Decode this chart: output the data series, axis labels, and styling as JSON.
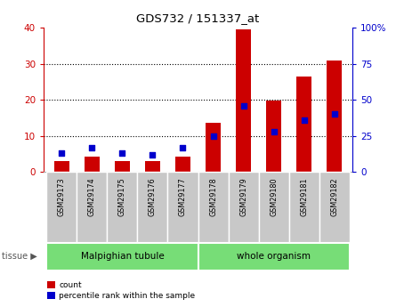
{
  "title": "GDS732 / 151337_at",
  "samples": [
    "GSM29173",
    "GSM29174",
    "GSM29175",
    "GSM29176",
    "GSM29177",
    "GSM29178",
    "GSM29179",
    "GSM29180",
    "GSM29181",
    "GSM29182"
  ],
  "counts": [
    3.0,
    4.2,
    3.0,
    3.0,
    4.2,
    13.5,
    39.5,
    19.8,
    26.5,
    31.0
  ],
  "percentiles": [
    13,
    17,
    13,
    12,
    17,
    25,
    46,
    28,
    36,
    40
  ],
  "groups": [
    {
      "label": "Malpighian tubule",
      "start": 0,
      "end": 5
    },
    {
      "label": "whole organism",
      "start": 5,
      "end": 10
    }
  ],
  "left_ylim": [
    0,
    40
  ],
  "right_ylim": [
    0,
    100
  ],
  "left_yticks": [
    0,
    10,
    20,
    30,
    40
  ],
  "right_yticks": [
    0,
    25,
    50,
    75,
    100
  ],
  "right_yticklabels": [
    "0",
    "25",
    "50",
    "75",
    "100%"
  ],
  "bar_color": "#cc0000",
  "dot_color": "#0000cc",
  "bar_width": 0.5,
  "dot_size": 22,
  "axis_color_left": "#cc0000",
  "axis_color_right": "#0000cc",
  "group_bg_color": "#77dd77",
  "sample_bg_color": "#c8c8c8",
  "legend_count_label": "count",
  "legend_pct_label": "percentile rank within the sample",
  "tissue_label": "tissue"
}
